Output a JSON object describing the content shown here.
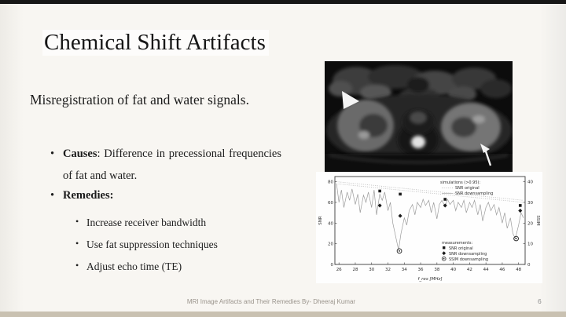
{
  "slide": {
    "title": "Chemical Shift Artifacts",
    "paragraph": "Misregistration of fat and water signals.",
    "bullets": [
      {
        "bold": "Causes",
        "rest": ": Difference in precessional frequencies of fat and water."
      },
      {
        "bold": "Remedies",
        "rest": ":"
      }
    ],
    "sub_bullets": [
      "Increase receiver bandwidth",
      "Use fat suppression techniques",
      "Adjust echo time (TE)"
    ],
    "footer": "MRI Image Artifacts and Their Remedies By- Dheeraj Kumar",
    "page_number": "6"
  },
  "colors": {
    "slide_background": "#f8f6f2",
    "top_bar": "#161616",
    "bottom_bar": "#c9c1b1",
    "text": "#1c1c1c",
    "footer_text": "#9a948c"
  },
  "chart_data": {
    "type": "line",
    "xlabel": "f_res [MHz]",
    "ylabel_left": "SNR",
    "ylabel_right": "SSIM",
    "xlim": [
      25.5,
      48.8
    ],
    "ylim_left": [
      0,
      85
    ],
    "ylim_right": [
      0,
      42.5
    ],
    "x_ticks": [
      26,
      28,
      30,
      32,
      34,
      36,
      38,
      40,
      42,
      44,
      46,
      48
    ],
    "y_ticks_left": [
      0,
      20,
      40,
      60,
      80
    ],
    "y_ticks_right": [
      0,
      10,
      20,
      30,
      40
    ],
    "grid": false,
    "legend_top": {
      "header": "simulations (>0.95):",
      "entries": [
        "SNR original",
        "SNR downsampling"
      ]
    },
    "legend_bottom": {
      "header": "measurements:",
      "entries": [
        "SNR original",
        "SNR downsampling",
        "SSIM downsampling"
      ]
    },
    "series": [
      {
        "name": "SNR measured (noisy)",
        "style": "noisy-gray",
        "points": [
          [
            25.7,
            78
          ],
          [
            26,
            60
          ],
          [
            26.3,
            72
          ],
          [
            26.6,
            55
          ],
          [
            27,
            70
          ],
          [
            27.3,
            62
          ],
          [
            27.6,
            73
          ],
          [
            28,
            58
          ],
          [
            28.3,
            68
          ],
          [
            28.6,
            50
          ],
          [
            29,
            67
          ],
          [
            29.3,
            60
          ],
          [
            29.6,
            70
          ],
          [
            30,
            55
          ],
          [
            30.3,
            72
          ],
          [
            30.6,
            48
          ],
          [
            31,
            68
          ],
          [
            31.3,
            62
          ],
          [
            31.6,
            70
          ],
          [
            32,
            52
          ],
          [
            32.3,
            60
          ],
          [
            32.6,
            40
          ],
          [
            33,
            25
          ],
          [
            33.3,
            14
          ],
          [
            33.6,
            30
          ],
          [
            34,
            45
          ],
          [
            34.3,
            38
          ],
          [
            34.6,
            52
          ],
          [
            35,
            58
          ],
          [
            35.3,
            48
          ],
          [
            35.6,
            60
          ],
          [
            36,
            55
          ],
          [
            36.3,
            63
          ],
          [
            36.6,
            57
          ],
          [
            37,
            62
          ],
          [
            37.3,
            50
          ],
          [
            37.6,
            60
          ],
          [
            38,
            44
          ],
          [
            38.3,
            58
          ],
          [
            38.6,
            62
          ],
          [
            39,
            56
          ],
          [
            39.3,
            63
          ],
          [
            39.6,
            58
          ],
          [
            40,
            62
          ],
          [
            40.3,
            52
          ],
          [
            40.6,
            60
          ],
          [
            41,
            55
          ],
          [
            41.3,
            62
          ],
          [
            41.6,
            50
          ],
          [
            42,
            60
          ],
          [
            42.3,
            55
          ],
          [
            42.6,
            62
          ],
          [
            43,
            48
          ],
          [
            43.3,
            58
          ],
          [
            43.6,
            42
          ],
          [
            44,
            55
          ],
          [
            44.3,
            60
          ],
          [
            44.6,
            52
          ],
          [
            45,
            58
          ],
          [
            45.3,
            48
          ],
          [
            45.6,
            55
          ],
          [
            46,
            40
          ],
          [
            46.3,
            50
          ],
          [
            46.6,
            35
          ],
          [
            47,
            45
          ],
          [
            47.3,
            30
          ],
          [
            47.6,
            25
          ],
          [
            48,
            38
          ],
          [
            48.3,
            50
          ],
          [
            48.6,
            45
          ]
        ]
      },
      {
        "name": "simulation SNR original",
        "style": "dotted",
        "points": [
          [
            25.7,
            80
          ],
          [
            48.6,
            62
          ]
        ]
      },
      {
        "name": "simulation SNR downsampling",
        "style": "dotted",
        "points": [
          [
            25.7,
            78
          ],
          [
            48.6,
            60
          ]
        ]
      }
    ],
    "markers": {
      "squares": [
        [
          31,
          71
        ],
        [
          33.5,
          68
        ],
        [
          39,
          63
        ],
        [
          48.2,
          57
        ]
      ],
      "diamonds": [
        [
          31,
          57
        ],
        [
          33.5,
          47
        ],
        [
          39,
          57
        ],
        [
          48.2,
          52
        ]
      ],
      "open_circles": [
        [
          33.4,
          13
        ],
        [
          47.7,
          25
        ]
      ]
    }
  }
}
